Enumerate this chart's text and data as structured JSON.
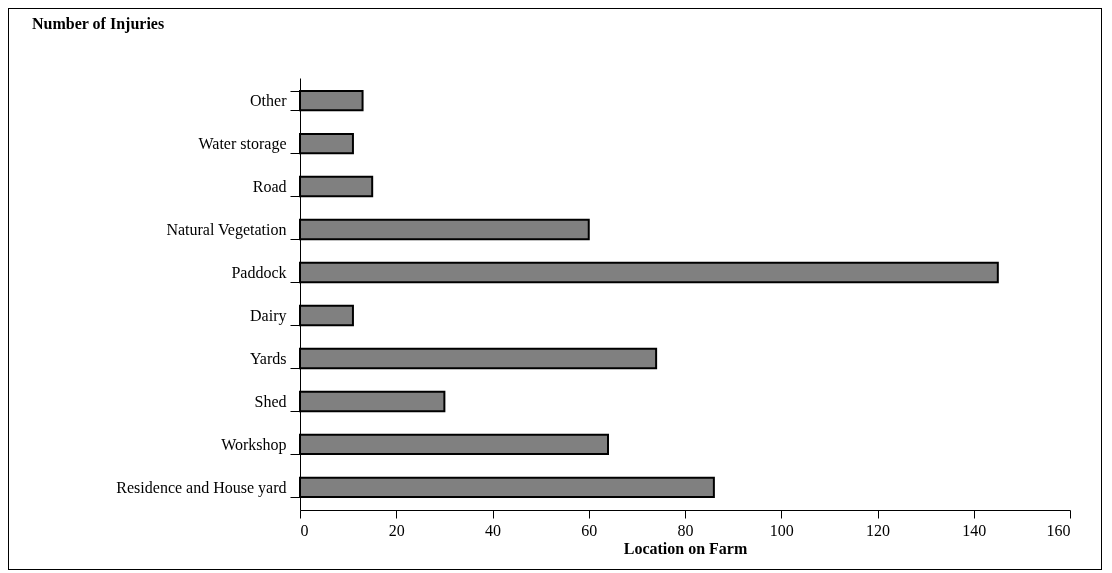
{
  "chart_data": {
    "type": "bar",
    "orientation": "horizontal",
    "title": "Number of Injuries",
    "xlabel": "Location on Farm",
    "categories": [
      "Other",
      "Water storage",
      "Road",
      "Natural Vegetation",
      "Paddock",
      "Dairy",
      "Yards",
      "Shed",
      "Workshop",
      "Residence and House yard"
    ],
    "values": [
      13,
      11,
      15,
      60,
      145,
      11,
      74,
      30,
      64,
      86
    ],
    "color": "#808080",
    "xlim": [
      0,
      160
    ],
    "xticks": [
      0,
      20,
      40,
      60,
      80,
      100,
      120,
      140,
      160
    ],
    "grid": false
  }
}
